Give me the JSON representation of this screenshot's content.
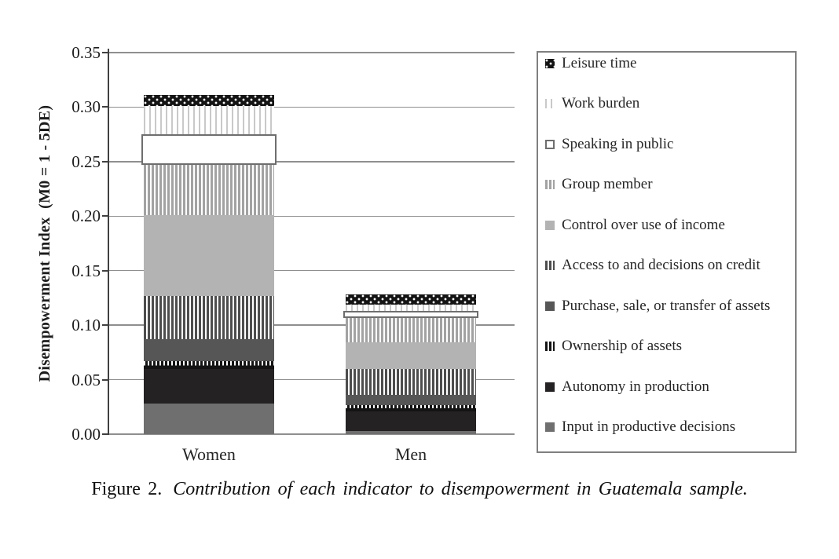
{
  "figure": {
    "caption_label": "Figure 2.",
    "caption_text": "Contribution of each indicator to disempowerment in Guatemala sample."
  },
  "chart_data": {
    "type": "bar",
    "stacked": true,
    "title": "",
    "xlabel": "",
    "ylabel": "Disempowerment Index  (M0 = 1 - 5DE)",
    "categories": [
      "Women",
      "Men"
    ],
    "ylim": [
      0,
      0.35
    ],
    "ytick_step": 0.05,
    "yticks": [
      "0.00",
      "0.05",
      "0.10",
      "0.15",
      "0.20",
      "0.25",
      "0.30",
      "0.35"
    ],
    "grid": true,
    "legend_position": "right",
    "series": [
      {
        "key": "input",
        "name": "Input in productive decisions",
        "values": [
          0.028,
          0.003
        ]
      },
      {
        "key": "autonomy",
        "name": "Autonomy in production",
        "values": [
          0.032,
          0.018
        ]
      },
      {
        "key": "ownership",
        "name": "Ownership of assets",
        "values": [
          0.007,
          0.006
        ]
      },
      {
        "key": "purchase",
        "name": "Purchase, sale, or transfer of assets",
        "values": [
          0.02,
          0.009
        ]
      },
      {
        "key": "credit",
        "name": "Access to and decisions on credit",
        "values": [
          0.04,
          0.024
        ]
      },
      {
        "key": "income",
        "name": "Control over use of income",
        "values": [
          0.074,
          0.024
        ]
      },
      {
        "key": "group",
        "name": "Group member",
        "values": [
          0.046,
          0.023
        ]
      },
      {
        "key": "speaking",
        "name": "Speaking in public",
        "values": [
          0.028,
          0.006
        ]
      },
      {
        "key": "work_burden",
        "name": "Work burden",
        "values": [
          0.026,
          0.006
        ]
      },
      {
        "key": "leisure",
        "name": "Leisure time",
        "values": [
          0.01,
          0.009
        ]
      }
    ],
    "bar_totals": [
      0.311,
      0.128
    ]
  },
  "patterns": {
    "leisure": {
      "type": "dots",
      "bg": "#141414",
      "fg": "#ffffff"
    },
    "work_burden": {
      "type": "stripes",
      "bg": "#ffffff",
      "fg": "#c9c9c9",
      "bar": 2,
      "gap": 5
    },
    "speaking": {
      "type": "solid",
      "bg": "#ffffff",
      "border": "#6e6e6e"
    },
    "group": {
      "type": "stripes",
      "bg": "#ffffff",
      "fg": "#a2a2a2",
      "bar": 3,
      "gap": 2
    },
    "income": {
      "type": "solid",
      "bg": "#b3b3b3"
    },
    "credit": {
      "type": "stripes",
      "bg": "#ffffff",
      "fg": "#4d4d4d",
      "bar": 3,
      "gap": 2
    },
    "purchase": {
      "type": "solid",
      "bg": "#565656"
    },
    "ownership": {
      "type": "stripes",
      "bg": "#141414",
      "fg": "#ffffff",
      "bar": 2,
      "gap": 3,
      "partial_top": true
    },
    "autonomy": {
      "type": "solid",
      "bg": "#252223"
    },
    "input": {
      "type": "solid",
      "bg": "#6f6f6f"
    }
  },
  "legend": {
    "items": [
      {
        "key": "leisure",
        "label": "Leisure time"
      },
      {
        "key": "work_burden",
        "label": "Work burden"
      },
      {
        "key": "speaking",
        "label": "Speaking in public"
      },
      {
        "key": "group",
        "label": "Group member"
      },
      {
        "key": "income",
        "label": "Control over use of income"
      },
      {
        "key": "credit",
        "label": "Access to and decisions on credit"
      },
      {
        "key": "purchase",
        "label": "Purchase, sale, or transfer of assets"
      },
      {
        "key": "ownership",
        "label": "Ownership of assets",
        "marker": {
          "type": "stripes",
          "bg": "#ffffff",
          "fg": "#141414",
          "bar": 3,
          "gap": 2
        }
      },
      {
        "key": "autonomy",
        "label": "Autonomy in production"
      },
      {
        "key": "input",
        "label": "Input in productive decisions"
      }
    ]
  },
  "colors": {
    "gridline": "#8f8f8f",
    "axis": "#404040",
    "legend_border": "#7f7f7f",
    "text": "#1c1c1c"
  }
}
